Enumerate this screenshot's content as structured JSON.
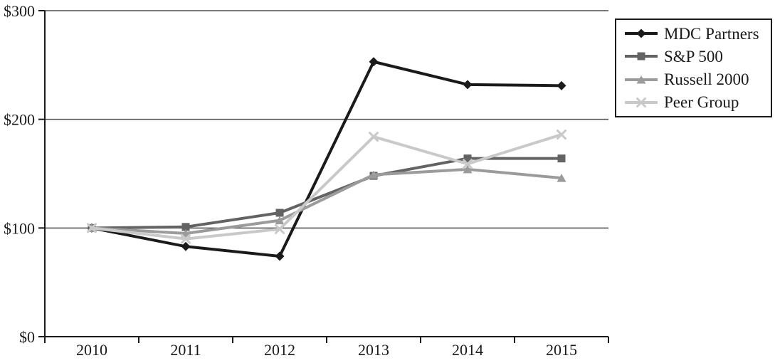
{
  "chart_data": {
    "type": "line",
    "title": "",
    "xlabel": "",
    "ylabel": "",
    "x_labels": [
      "2010",
      "2011",
      "2012",
      "2013",
      "2014",
      "2015"
    ],
    "y_tick_labels": [
      "$0",
      "$100",
      "$200",
      "$300"
    ],
    "y_tick_values": [
      0,
      100,
      200,
      300
    ],
    "ylim": [
      0,
      300
    ],
    "grid": "horizontal",
    "legend_position": "top-right",
    "series": [
      {
        "name": "MDC Partners",
        "marker": "diamond",
        "color": "#1a1a1a",
        "values": [
          100,
          83,
          74,
          253,
          232,
          231
        ]
      },
      {
        "name": "S&P 500",
        "marker": "square",
        "color": "#636363",
        "values": [
          100,
          101,
          114,
          148,
          164,
          164
        ]
      },
      {
        "name": "Russell 2000",
        "marker": "triangle",
        "color": "#9b9b9b",
        "values": [
          100,
          95,
          107,
          149,
          154,
          146
        ]
      },
      {
        "name": "Peer Group",
        "marker": "x",
        "color": "#c9c9c9",
        "values": [
          100,
          90,
          99,
          184,
          159,
          186
        ]
      }
    ],
    "colors": {
      "axis": "#1a1a1a",
      "gridline": "#4d4d4d",
      "background": "#ffffff"
    }
  }
}
